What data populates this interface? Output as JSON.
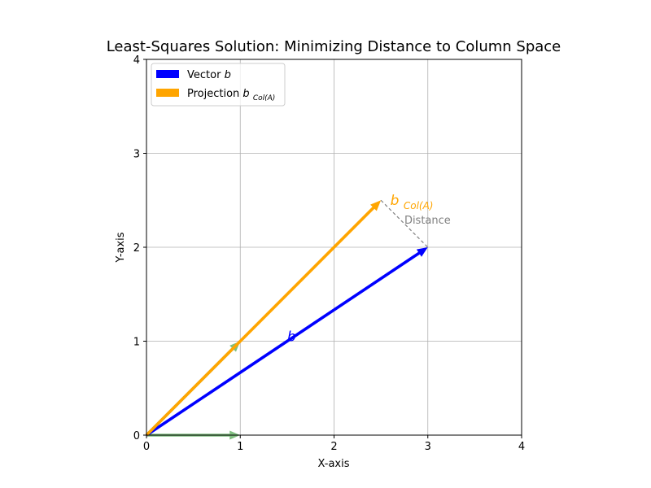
{
  "chart_data": {
    "type": "quiver",
    "title": "Least-Squares Solution: Minimizing Distance to Column Space",
    "xlabel": "X-axis",
    "ylabel": "Y-axis",
    "xlim": [
      0,
      4
    ],
    "ylim": [
      0,
      4
    ],
    "xticks": [
      "0",
      "1",
      "2",
      "3",
      "4"
    ],
    "yticks": [
      "0",
      "1",
      "2",
      "3",
      "4"
    ],
    "grid": true,
    "legend": {
      "placement": "upper-left",
      "entries": [
        {
          "label_text": "Vector ",
          "label_math": "b",
          "label_sub": "",
          "color": "#0000ff"
        },
        {
          "label_text": "Projection ",
          "label_math": "b",
          "label_sub": "Col(A)",
          "color": "#ffa500"
        }
      ]
    },
    "vectors": [
      {
        "id": "column-a1",
        "from": [
          0,
          0
        ],
        "to": [
          1,
          0
        ],
        "color": "#008000",
        "alpha": 0.5
      },
      {
        "id": "column-a2",
        "from": [
          0,
          0
        ],
        "to": [
          1,
          1
        ],
        "color": "#008000",
        "alpha": 0.5
      },
      {
        "id": "vector-b",
        "from": [
          0,
          0
        ],
        "to": [
          3,
          2
        ],
        "color": "#0000ff",
        "alpha": 1
      },
      {
        "id": "projection",
        "from": [
          0,
          0
        ],
        "to": [
          2.5,
          2.5
        ],
        "color": "#ffa500",
        "alpha": 1
      }
    ],
    "distance_line": {
      "from": [
        2.5,
        2.5
      ],
      "to": [
        3,
        2
      ],
      "color": "#808080",
      "style": "dashed"
    },
    "annotations": {
      "b_label": {
        "text": "b",
        "at": [
          1.5,
          1.0
        ],
        "color": "#0000ff"
      },
      "projection_label": {
        "text": "b",
        "sub": "Col(A)",
        "at": [
          2.6,
          2.45
        ],
        "color": "#ffa500"
      },
      "distance_label": {
        "text": "Distance",
        "at": [
          2.75,
          2.25
        ],
        "color": "#808080"
      }
    }
  }
}
